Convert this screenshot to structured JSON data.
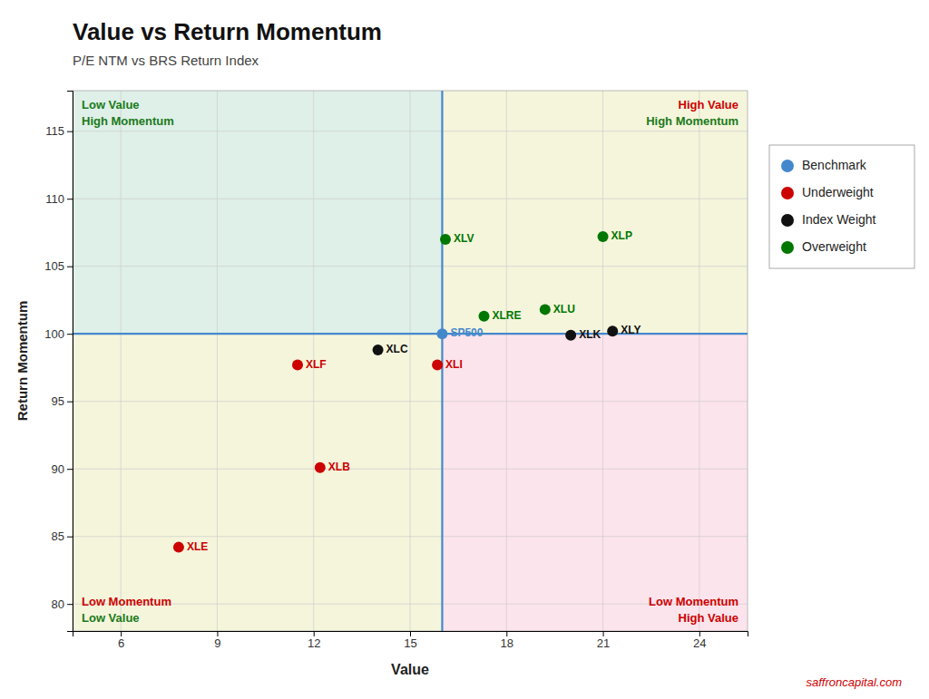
{
  "chart_data": {
    "type": "scatter",
    "title": "Value vs Return Momentum",
    "subtitle": "P/E NTM vs BRS Return Index",
    "xlabel": "Value",
    "ylabel": "Return Momentum",
    "xlim": [
      4.5,
      25.5
    ],
    "ylim": [
      78,
      118
    ],
    "xticks": [
      6,
      9,
      12,
      15,
      18,
      21,
      24
    ],
    "yticks": [
      80,
      85,
      90,
      95,
      100,
      105,
      110,
      115
    ],
    "grid": true,
    "legend": "right",
    "benchmark_x": 16.0,
    "benchmark_y": 100.0,
    "benchmark_color": "#4488cc",
    "quadrants": [
      {
        "position": "top left",
        "color": "#dff0e8",
        "labels": [
          {
            "text": "Low Value",
            "color": "#1a7a1a"
          },
          {
            "text": "High Momentum",
            "color": "#1a7a1a"
          }
        ]
      },
      {
        "position": "top right",
        "color": "#f5f5dc",
        "labels": [
          {
            "text": "High Value",
            "color": "#cc0000"
          },
          {
            "text": "High Momentum",
            "color": "#1a7a1a"
          }
        ]
      },
      {
        "position": "bottom left",
        "color": "#f5f5dc",
        "labels": [
          {
            "text": "Low Value",
            "color": "#1a7a1a"
          },
          {
            "text": "Low Momentum",
            "color": "#cc0000"
          }
        ]
      },
      {
        "position": "bottom right",
        "color": "#fce4ec",
        "labels": [
          {
            "text": "High Value",
            "color": "#cc0000"
          },
          {
            "text": "Low Momentum",
            "color": "#cc0000"
          }
        ]
      }
    ],
    "series": [
      {
        "name": "Benchmark",
        "color": "#4488cc",
        "x": [
          16.0
        ],
        "values": [
          100.0
        ],
        "labels": [
          "SP500"
        ]
      },
      {
        "name": "Underweight",
        "color": "#cc0000",
        "x": [
          11.5,
          7.8,
          12.2,
          15.85
        ],
        "values": [
          97.7,
          84.2,
          90.1,
          97.7
        ],
        "labels": [
          "XLF",
          "XLE",
          "XLB",
          "XLI"
        ]
      },
      {
        "name": "Index Weight",
        "color": "#111111",
        "x": [
          14.0,
          20.0,
          21.3
        ],
        "values": [
          98.8,
          99.9,
          100.2
        ],
        "labels": [
          "XLC",
          "XLK",
          "XLY"
        ]
      },
      {
        "name": "Overweight",
        "color": "#007700",
        "x": [
          16.1,
          21.0,
          19.2,
          17.3
        ],
        "values": [
          107.0,
          107.2,
          101.8,
          101.3
        ],
        "labels": [
          "XLV",
          "XLP",
          "XLU",
          "XLRE"
        ]
      }
    ],
    "watermark": {
      "text": "saffroncapital.com",
      "color": "#cc0000"
    }
  }
}
